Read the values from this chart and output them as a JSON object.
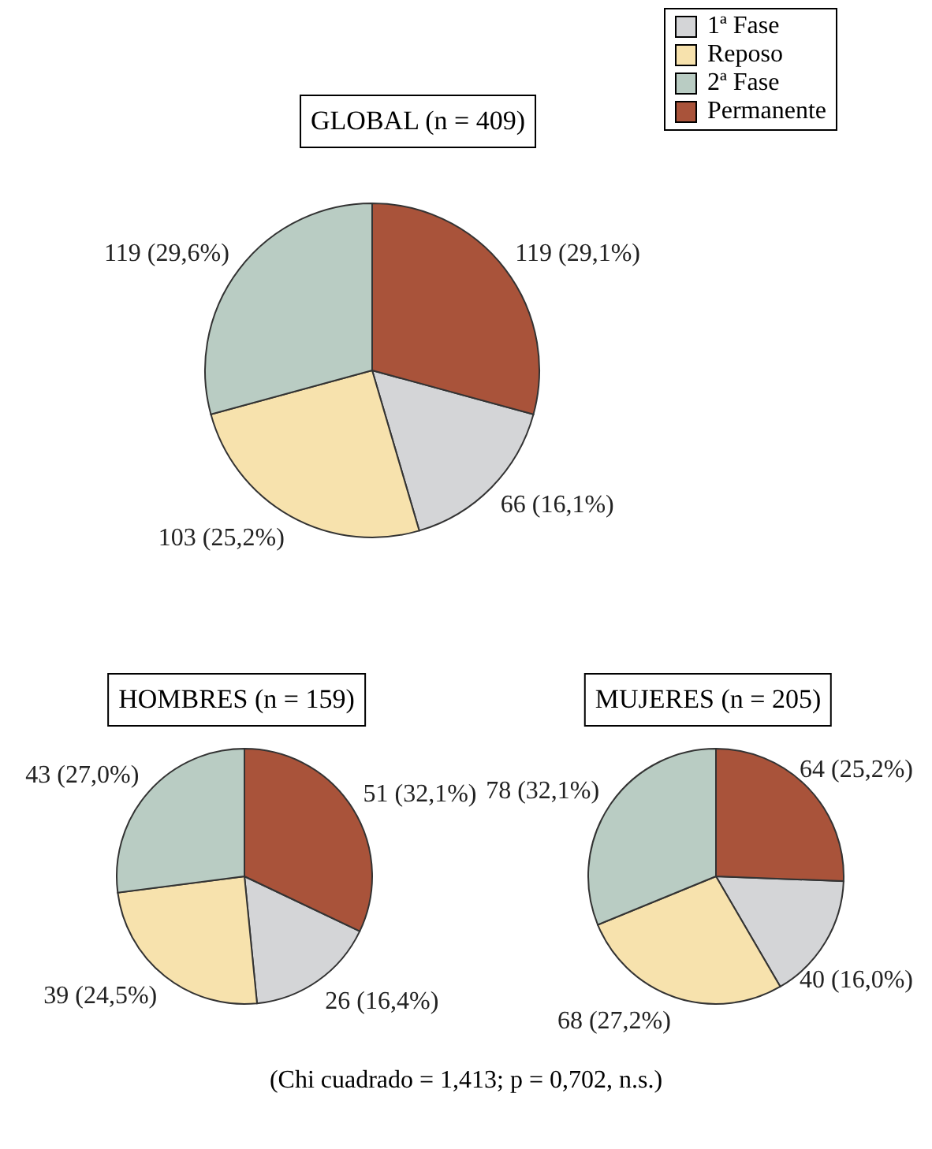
{
  "chart_data": [
    {
      "type": "pie",
      "title": "GLOBAL (n = 409)",
      "categories": [
        "1ª Fase",
        "Reposo",
        "2ª Fase",
        "Permanente"
      ],
      "values": [
        66,
        103,
        119,
        119
      ],
      "colors": [
        "#d4d5d7",
        "#f7e2ad",
        "#b9ccc3",
        "#a9533a"
      ],
      "value_labels": [
        "66 (16,1%)",
        "103 (25,2%)",
        "119 (29,6%)",
        "119 (29,1%)"
      ],
      "legend": "top right"
    },
    {
      "type": "pie",
      "title": "HOMBRES (n = 159)",
      "categories": [
        null,
        null,
        null,
        null
      ],
      "values": [
        26,
        39,
        43,
        51
      ],
      "colors": [
        "#d4d5d7",
        "#f7e2ad",
        "#b9ccc3",
        "#a9533a"
      ],
      "value_labels": [
        "26 (16,4%)",
        "39 (24,5%)",
        "43 (27,0%)",
        "51 (32,1%)"
      ]
    },
    {
      "type": "pie",
      "title": "MUJERES (n = 205)",
      "categories": [
        null,
        null,
        null,
        null
      ],
      "values": [
        40,
        68,
        78,
        64
      ],
      "colors": [
        "#d4d5d7",
        "#f7e2ad",
        "#b9ccc3",
        "#a9533a"
      ],
      "value_labels": [
        "40 (16,0%)",
        "68 (27,2%)",
        "78 (32,1%)",
        "64 (25,2%)"
      ],
      "annotations": [
        "(Chi cuadrado = 1,413; p = 0,702, n.s.)"
      ]
    }
  ]
}
